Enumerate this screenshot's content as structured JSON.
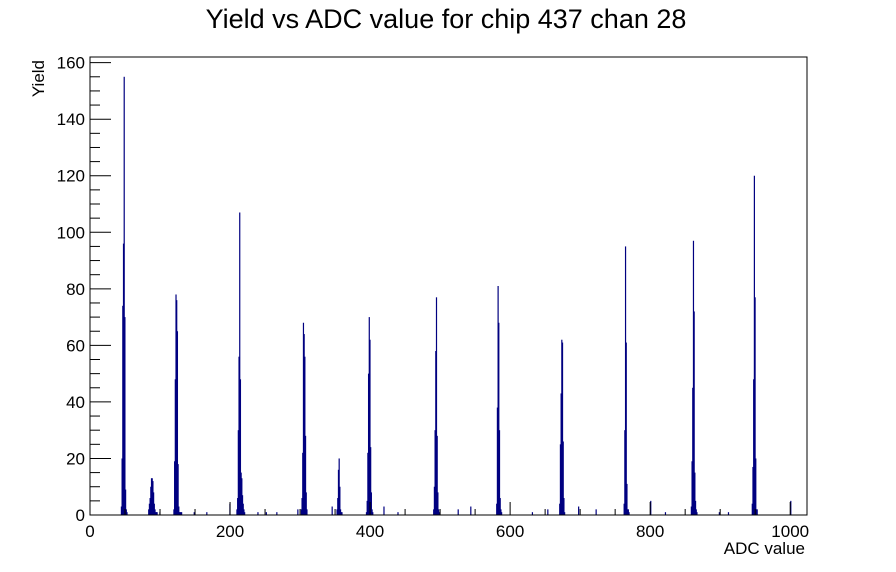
{
  "chart_data": {
    "type": "bar",
    "title": "Yield vs ADC value for chip 437 chan 28",
    "xlabel": "ADC value",
    "ylabel": "Yield",
    "xlim": [
      0,
      1024
    ],
    "ylim": [
      0,
      162
    ],
    "x_ticks": [
      0,
      200,
      400,
      600,
      800,
      1000
    ],
    "y_ticks": [
      0,
      20,
      40,
      60,
      80,
      100,
      120,
      140,
      160
    ],
    "grid": false,
    "legend": "none",
    "bar_color": "#000080",
    "series": [
      {
        "x": [
          44,
          45,
          46,
          47,
          48,
          49,
          50,
          51,
          52,
          83,
          84,
          85,
          86,
          87,
          88,
          89,
          90,
          91,
          92,
          93,
          94,
          95,
          99,
          119,
          120,
          121,
          122,
          123,
          124,
          125,
          126,
          127,
          128,
          129,
          130,
          148,
          166,
          199,
          209,
          210,
          211,
          212,
          213,
          214,
          215,
          216,
          217,
          218,
          219,
          220,
          239,
          251,
          266,
          296,
          301,
          302,
          303,
          304,
          305,
          306,
          307,
          308,
          309,
          345,
          352,
          353,
          354,
          355,
          356,
          357,
          358,
          359,
          394,
          395,
          396,
          397,
          398,
          399,
          400,
          401,
          402,
          403,
          419,
          439,
          490,
          491,
          492,
          493,
          494,
          495,
          496,
          497,
          498,
          525,
          543,
          580,
          581,
          582,
          583,
          584,
          585,
          586,
          587,
          631,
          653,
          670,
          671,
          672,
          673,
          674,
          675,
          676,
          677,
          697,
          722,
          762,
          763,
          764,
          765,
          766,
          767,
          768,
          769,
          800,
          821,
          858,
          859,
          860,
          861,
          862,
          863,
          864,
          865,
          866,
          898,
          911,
          945,
          946,
          947,
          948,
          949,
          950,
          951,
          952,
          1000
        ],
        "values": [
          3,
          20,
          74,
          96,
          155,
          70,
          9,
          2,
          1,
          2,
          4,
          6,
          10,
          13,
          13,
          12,
          8,
          4,
          2,
          1,
          1,
          1,
          1,
          2,
          19,
          48,
          78,
          76,
          65,
          18,
          3,
          1,
          1,
          1,
          1,
          1,
          1,
          4,
          2,
          6,
          30,
          56,
          107,
          48,
          15,
          13,
          7,
          4,
          2,
          1,
          1,
          1,
          1,
          2,
          2,
          6,
          22,
          68,
          64,
          56,
          28,
          8,
          2,
          3,
          2,
          6,
          16,
          20,
          10,
          2,
          1,
          1,
          1,
          5,
          22,
          50,
          70,
          62,
          24,
          8,
          2,
          1,
          3,
          1,
          2,
          10,
          30,
          58,
          77,
          28,
          8,
          2,
          1,
          2,
          3,
          4,
          38,
          81,
          68,
          30,
          6,
          2,
          1,
          1,
          2,
          4,
          25,
          43,
          62,
          61,
          26,
          6,
          1,
          3,
          2,
          4,
          30,
          95,
          61,
          11,
          2,
          2,
          1,
          5,
          1,
          3,
          19,
          45,
          97,
          72,
          15,
          5,
          2,
          1,
          1,
          1,
          4,
          17,
          48,
          120,
          77,
          20,
          2,
          2,
          5
        ]
      }
    ]
  }
}
